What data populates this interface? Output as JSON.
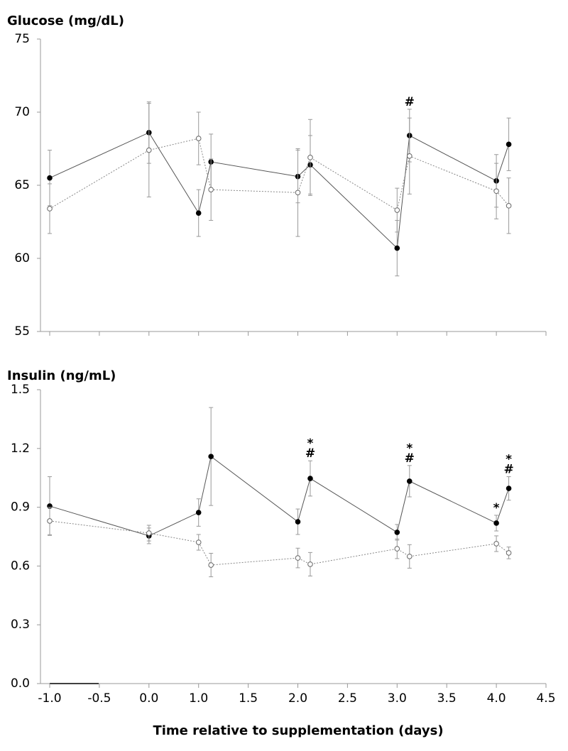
{
  "chart_data": [
    {
      "type": "line",
      "title": "Glucose (mg/dL)",
      "x": [
        -1,
        0,
        1,
        1.125,
        2,
        2.125,
        3,
        3.125,
        4,
        4.125
      ],
      "ylim": [
        55,
        75
      ],
      "yticks": [
        55,
        60,
        65,
        70,
        75
      ],
      "series": [
        {
          "color": "#000000",
          "line_color": "#555555",
          "linestyle": "solid",
          "marker_fill": "#000000",
          "values": [
            65.5,
            68.6,
            63.1,
            66.6,
            65.6,
            66.4,
            60.7,
            68.4,
            65.3,
            67.8
          ],
          "errors": [
            1.9,
            2.1,
            1.6,
            1.9,
            1.8,
            2.0,
            1.9,
            1.8,
            1.8,
            1.8
          ],
          "annotations": [
            null,
            null,
            null,
            null,
            null,
            null,
            null,
            [
              "#"
            ],
            null,
            null
          ]
        },
        {
          "color": "#666666",
          "line_color": "#888888",
          "linestyle": "dotted",
          "marker_fill": "#ffffff",
          "values": [
            63.4,
            67.4,
            68.2,
            64.7,
            64.5,
            66.9,
            63.3,
            67.0,
            64.6,
            63.6
          ],
          "errors": [
            1.7,
            3.2,
            1.8,
            2.1,
            3.0,
            2.6,
            1.5,
            2.6,
            1.9,
            1.9
          ]
        }
      ]
    },
    {
      "type": "line",
      "title": "Insulin (ng/mL)",
      "xlabel": "Time relative to supplementation (days)",
      "x": [
        -1,
        0,
        1,
        1.125,
        2,
        2.125,
        3,
        3.125,
        4,
        4.125
      ],
      "xlim": [
        -1,
        4.5
      ],
      "xticks": [
        {
          "value": -1,
          "label": "-1.0"
        },
        -0.5,
        {
          "value": 0,
          "label": "0.0"
        },
        {
          "value": 1,
          "label": "1.0"
        },
        1.5,
        {
          "value": 2,
          "label": "2.0"
        },
        2.5,
        {
          "value": 3,
          "label": "3.0"
        },
        3.5,
        {
          "value": 4,
          "label": "4.0"
        },
        4.5
      ],
      "ylim": [
        0,
        1.5
      ],
      "yticks": [
        {
          "value": 0,
          "label": "0.0"
        },
        0.3,
        0.6,
        0.9,
        1.2,
        1.5
      ],
      "series": [
        {
          "color": "#000000",
          "line_color": "#555555",
          "linestyle": "solid",
          "marker_fill": "#000000",
          "values": [
            0.906,
            0.754,
            0.873,
            1.159,
            0.826,
            1.047,
            0.772,
            1.033,
            0.819,
            0.996
          ],
          "errors": [
            0.15,
            0.04,
            0.07,
            0.25,
            0.065,
            0.09,
            0.04,
            0.08,
            0.04,
            0.06
          ],
          "annotations": [
            null,
            null,
            null,
            null,
            null,
            [
              "*",
              "#"
            ],
            null,
            [
              "*",
              "#"
            ],
            [
              "*"
            ],
            [
              "*",
              "#"
            ]
          ]
        },
        {
          "color": "#666666",
          "line_color": "#888888",
          "linestyle": "dotted",
          "marker_fill": "#ffffff",
          "values": [
            0.83,
            0.768,
            0.721,
            0.605,
            0.641,
            0.609,
            0.688,
            0.649,
            0.714,
            0.667
          ],
          "errors": [
            0.07,
            0.04,
            0.04,
            0.06,
            0.05,
            0.06,
            0.05,
            0.06,
            0.04,
            0.03
          ]
        }
      ]
    }
  ]
}
